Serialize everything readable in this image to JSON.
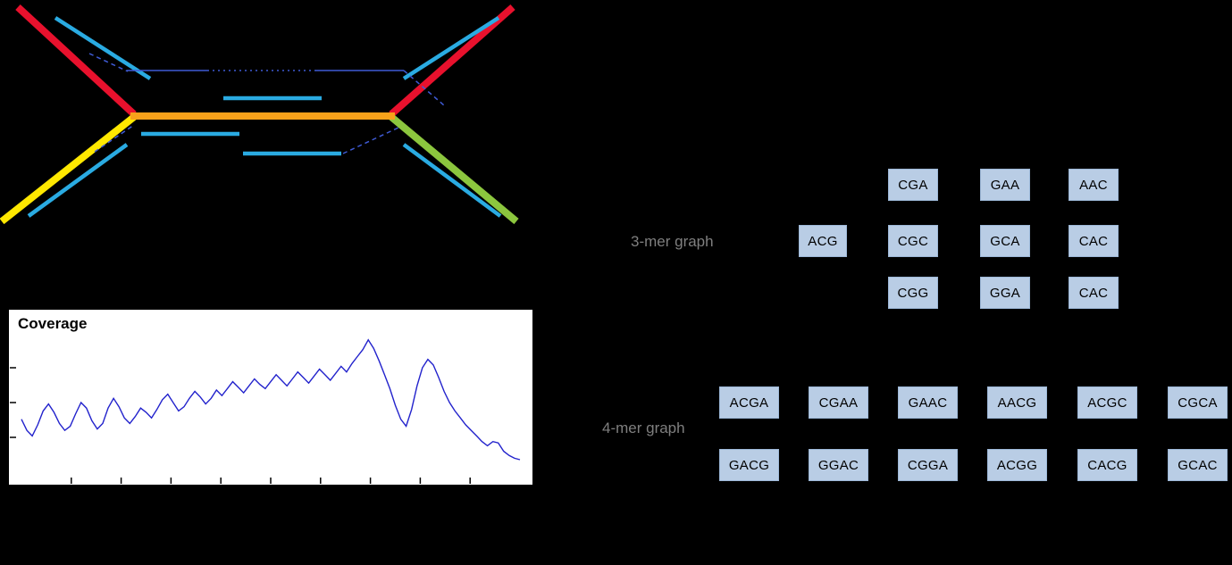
{
  "background": "#000000",
  "repeat_diagram": {
    "colors": {
      "unique_red": "#e8112d",
      "unique_yellow": "#ffe800",
      "unique_green": "#8cc63e",
      "repeat_orange": "#f7a11a",
      "read_cyan": "#2aabe2",
      "mate_blue": "#3f5bd6"
    }
  },
  "chart_data": {
    "type": "line",
    "title": "Coverage",
    "xlabel": "",
    "ylabel": "",
    "ylim": [
      0,
      100
    ],
    "grid": false,
    "legend": false,
    "line_color": "#2222cc",
    "series": [
      {
        "name": "coverage",
        "values": [
          38,
          30,
          26,
          34,
          44,
          49,
          43,
          35,
          30,
          33,
          42,
          50,
          46,
          37,
          31,
          35,
          46,
          53,
          47,
          39,
          35,
          40,
          46,
          43,
          39,
          45,
          52,
          56,
          50,
          44,
          47,
          53,
          58,
          54,
          49,
          53,
          59,
          55,
          60,
          65,
          61,
          57,
          62,
          67,
          63,
          60,
          65,
          70,
          66,
          62,
          67,
          72,
          68,
          64,
          69,
          74,
          70,
          66,
          71,
          76,
          72,
          78,
          83,
          88,
          95,
          89,
          80,
          70,
          60,
          48,
          38,
          33,
          45,
          62,
          75,
          81,
          77,
          68,
          58,
          50,
          44,
          39,
          34,
          30,
          26,
          22,
          19,
          22,
          21,
          15,
          12,
          10,
          9
        ]
      }
    ]
  },
  "kmer3": {
    "label": "3-mer graph",
    "source": "ACG",
    "columns": [
      [
        "CGA",
        "CGC",
        "CGG"
      ],
      [
        "GAA",
        "GCA",
        "GGA"
      ],
      [
        "AAC",
        "CAC",
        "CAC"
      ]
    ]
  },
  "kmer4": {
    "label": "4-mer graph",
    "rows": [
      [
        "ACGA",
        "CGAA",
        "GAAC",
        "AACG",
        "ACGC",
        "CGCA"
      ],
      [
        "GACG",
        "GGAC",
        "CGGA",
        "ACGG",
        "CACG",
        "GCAC"
      ]
    ]
  }
}
